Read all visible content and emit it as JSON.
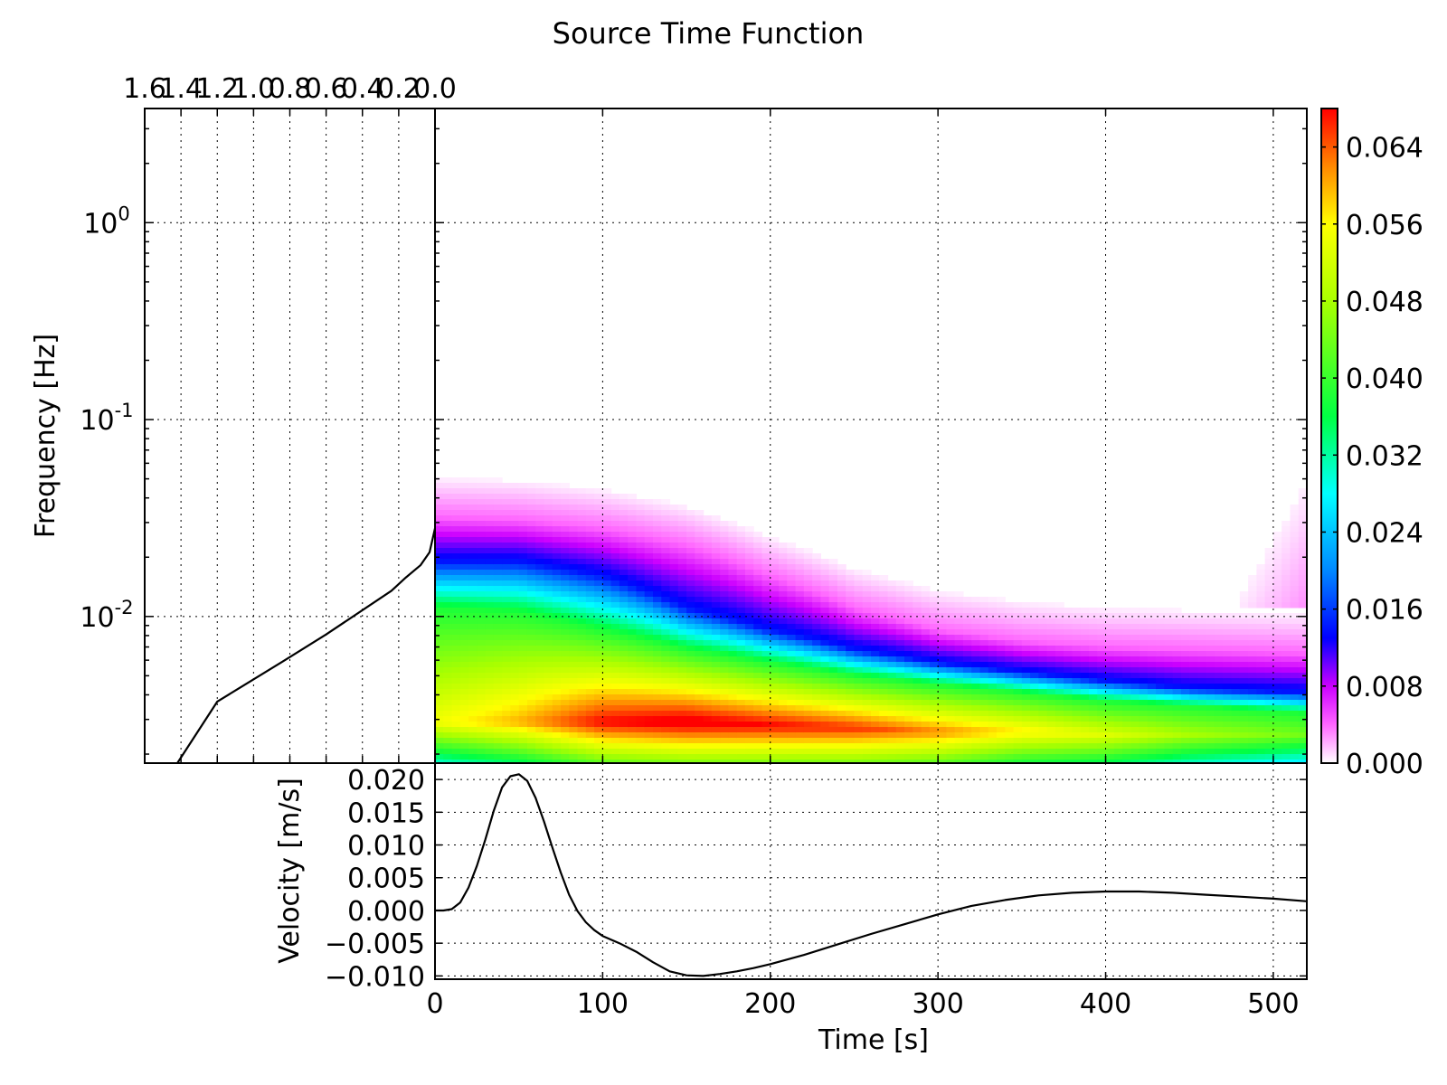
{
  "chart_data": [
    {
      "id": "spectrogram",
      "type": "heatmap",
      "title": "Source Time Function",
      "ylabel": "Frequency [Hz]",
      "xlabel": "",
      "y_scale": "log",
      "xlim": [
        0,
        520
      ],
      "ylim": [
        0.0018,
        3.8
      ],
      "x_ticks": [
        0,
        100,
        200,
        300,
        400,
        500
      ],
      "y_ticks": [
        {
          "value": 0.01,
          "base": "10",
          "exp": "-2"
        },
        {
          "value": 0.1,
          "base": "10",
          "exp": "-1"
        },
        {
          "value": 1,
          "base": "10",
          "exp": "0"
        }
      ],
      "grid": true,
      "colormap": "hsv-like (white→magenta→blue→cyan→green→yellow→red)",
      "ridge_curves": {
        "time": [
          0,
          50,
          100,
          150,
          200,
          250,
          300,
          350,
          400,
          450,
          520
        ],
        "band_012_hz": [
          0.032,
          0.031,
          0.028,
          0.023,
          0.016,
          0.011,
          0.0085,
          0.0075,
          0.007,
          0.0068,
          0.0065
        ],
        "band_016_hz": [
          0.019,
          0.019,
          0.016,
          0.011,
          0.0085,
          0.0068,
          0.0058,
          0.0052,
          0.0047,
          0.0043,
          0.0041
        ],
        "band_040_hz": [
          0.011,
          0.0105,
          0.0085,
          0.0068,
          0.0058,
          0.005,
          0.0045,
          0.0041,
          0.0037,
          0.0035,
          0.0032
        ],
        "band_064_hz": [
          0.0029,
          0.0029,
          0.0029,
          0.0029,
          0.0028,
          0.0027,
          0.0026,
          0.0026,
          0.0025,
          0.0025,
          0.0025
        ],
        "amp_at_064": [
          0.055,
          0.06,
          0.068,
          0.07,
          0.068,
          0.066,
          0.062,
          0.057,
          0.053,
          0.048,
          0.044
        ]
      }
    },
    {
      "id": "colorbar",
      "type": "colorbar",
      "range": [
        0,
        0.068
      ],
      "ticks": [
        "0.000",
        "0.008",
        "0.016",
        "0.024",
        "0.032",
        "0.040",
        "0.048",
        "0.056",
        "0.064"
      ],
      "tick_values": [
        0,
        0.008,
        0.016,
        0.024,
        0.032,
        0.04,
        0.048,
        0.056,
        0.064
      ],
      "stops": [
        {
          "v": 0.0,
          "color": "#ffffff"
        },
        {
          "v": 0.004,
          "color": "#ff66ff"
        },
        {
          "v": 0.008,
          "color": "#cc00ff"
        },
        {
          "v": 0.013,
          "color": "#0000ff"
        },
        {
          "v": 0.02,
          "color": "#0088ff"
        },
        {
          "v": 0.028,
          "color": "#00ffff"
        },
        {
          "v": 0.036,
          "color": "#00ff44"
        },
        {
          "v": 0.048,
          "color": "#aaff00"
        },
        {
          "v": 0.056,
          "color": "#ffff00"
        },
        {
          "v": 0.062,
          "color": "#ff8800"
        },
        {
          "v": 0.068,
          "color": "#ff0000"
        }
      ]
    },
    {
      "id": "spectrum",
      "type": "line",
      "xlabel": "",
      "ylabel": "",
      "x_ticks": [
        "1.6",
        "1.4",
        "1.2",
        "1.0",
        "0.8",
        "0.6",
        "0.4",
        "0.2",
        "0.0"
      ],
      "x_tick_values": [
        1.6,
        1.4,
        1.2,
        1.0,
        0.8,
        0.6,
        0.4,
        0.2,
        0.0
      ],
      "xlim": [
        1.6,
        0.0
      ],
      "x_reversed": true,
      "grid": true,
      "x": [
        1.42,
        1.2,
        0.84,
        0.6,
        0.24,
        0.16,
        0.08,
        0.03,
        0.0
      ],
      "y": [
        0.0018,
        0.0037,
        0.0059,
        0.0081,
        0.0135,
        0.0158,
        0.0182,
        0.0212,
        0.028
      ]
    },
    {
      "id": "velocity",
      "type": "line",
      "xlabel": "Time [s]",
      "ylabel": "Velocity [m/s]",
      "xlim": [
        0,
        520
      ],
      "ylim": [
        -0.0105,
        0.0225
      ],
      "x_ticks": [
        "0",
        "100",
        "200",
        "300",
        "400",
        "500"
      ],
      "x_tick_values": [
        0,
        100,
        200,
        300,
        400,
        500
      ],
      "y_ticks": [
        "0.020",
        "0.015",
        "0.010",
        "0.005",
        "0.000",
        "−0.005",
        "−0.010"
      ],
      "y_tick_values": [
        0.02,
        0.015,
        0.01,
        0.005,
        0.0,
        -0.005,
        -0.01
      ],
      "grid": true,
      "x": [
        0,
        5,
        10,
        15,
        20,
        25,
        30,
        35,
        40,
        45,
        50,
        55,
        60,
        65,
        70,
        75,
        80,
        85,
        90,
        95,
        100,
        110,
        120,
        130,
        140,
        150,
        160,
        170,
        180,
        190,
        200,
        220,
        240,
        260,
        280,
        300,
        320,
        340,
        360,
        380,
        400,
        420,
        440,
        460,
        480,
        500,
        520
      ],
      "y": [
        0.0,
        0.0,
        0.0002,
        0.0012,
        0.0035,
        0.0068,
        0.0108,
        0.0152,
        0.0188,
        0.0205,
        0.0208,
        0.0198,
        0.0172,
        0.0136,
        0.0096,
        0.0058,
        0.0024,
        -0.0001,
        -0.0018,
        -0.003,
        -0.0039,
        -0.005,
        -0.0063,
        -0.0079,
        -0.0093,
        -0.0099,
        -0.01,
        -0.0097,
        -0.0093,
        -0.0088,
        -0.0082,
        -0.0068,
        -0.0052,
        -0.0036,
        -0.0021,
        -0.0006,
        0.0007,
        0.0016,
        0.0023,
        0.0027,
        0.0029,
        0.0029,
        0.0027,
        0.0024,
        0.0021,
        0.0018,
        0.0014
      ]
    }
  ]
}
